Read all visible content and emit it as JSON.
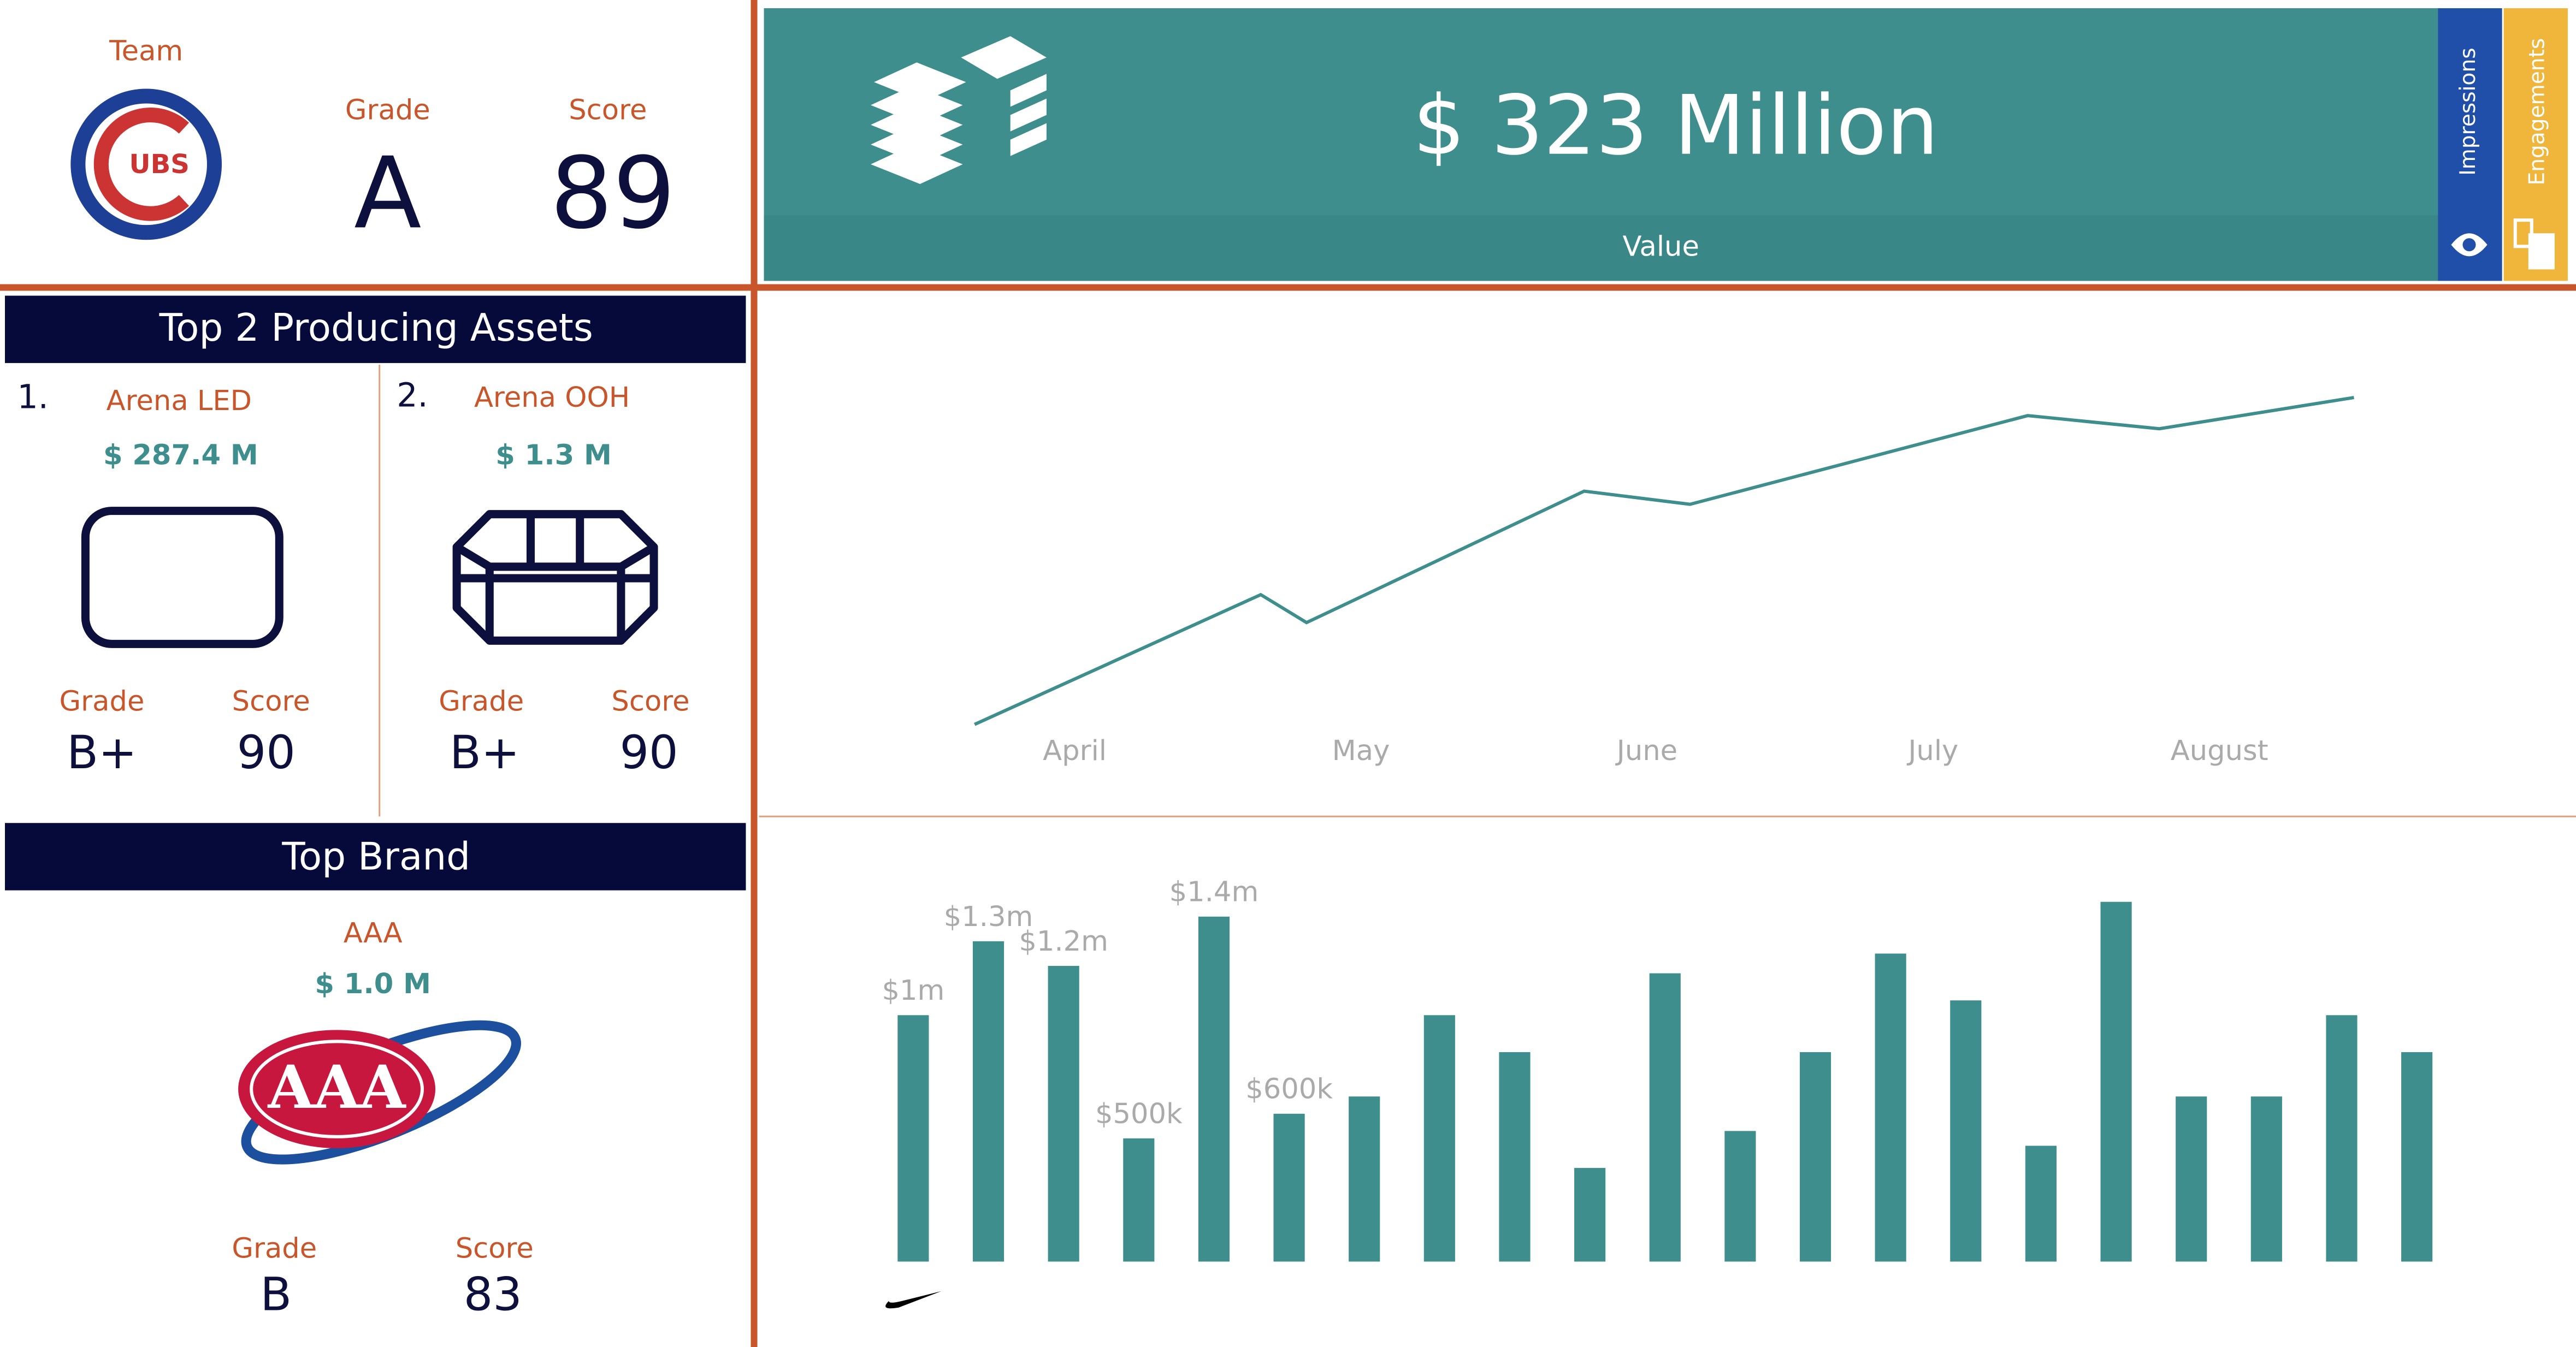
{
  "team": {
    "label": "Team",
    "logo_text": "UBS",
    "grade_label": "Grade",
    "grade": "A",
    "score_label": "Score",
    "score": 89
  },
  "value_panel": {
    "amount": "$ 323 Million",
    "label": "Value",
    "tabs": [
      "Impressions",
      "Engagements"
    ]
  },
  "top_assets": {
    "title": "Top 2 Producing Assets",
    "items": [
      {
        "rank": "1.",
        "name": "Arena LED",
        "value": "$ 287.4 M",
        "grade_label": "Grade",
        "grade": "B+",
        "score_label": "Score",
        "score": 90
      },
      {
        "rank": "2.",
        "name": "Arena OOH",
        "value": "$ 1.3 M",
        "grade_label": "Grade",
        "grade": "B+",
        "score_label": "Score",
        "score": 90
      }
    ]
  },
  "top_brand": {
    "title": "Top Brand",
    "name": "AAA",
    "value": "$ 1.0 M",
    "logo_text": "AAA",
    "grade_label": "Grade",
    "grade": "B",
    "score_label": "Score",
    "score": 83
  },
  "chart_data": [
    {
      "type": "line",
      "x": [
        -0.35,
        0.65,
        0.81,
        1.78,
        2.15,
        3.33,
        3.79,
        4.47
      ],
      "series": [
        {
          "color": "#3f8e8e",
          "values": [
            19,
            98,
            81,
            161,
            153,
            207,
            199,
            218
          ]
        }
      ],
      "xlim": [
        -1,
        5.2
      ],
      "ylim": [
        0,
        240
      ],
      "xticks": [
        {
          "value": 0,
          "label": "April"
        },
        {
          "value": 1,
          "label": "May"
        },
        {
          "value": 2,
          "label": "June"
        },
        {
          "value": 3,
          "label": "July"
        },
        {
          "value": 4,
          "label": "August"
        }
      ]
    },
    {
      "type": "bar",
      "color": "#3f8e8e",
      "values": [
        1000000,
        1300000,
        1200000,
        500000,
        1400000,
        600000,
        670000,
        1000000,
        850000,
        380000,
        1170000,
        530000,
        850000,
        1250000,
        1060000,
        470000,
        1460000,
        670000,
        670000,
        1000000,
        850000
      ],
      "value_labels": [
        "$1m",
        "$1.3m",
        "$1.2m",
        "$500k",
        "$1.4m",
        "$600k",
        null,
        null,
        null,
        null,
        null,
        null,
        null,
        null,
        null,
        null,
        null,
        null,
        null,
        null,
        null
      ],
      "ylim": [
        0,
        1600000
      ]
    }
  ]
}
